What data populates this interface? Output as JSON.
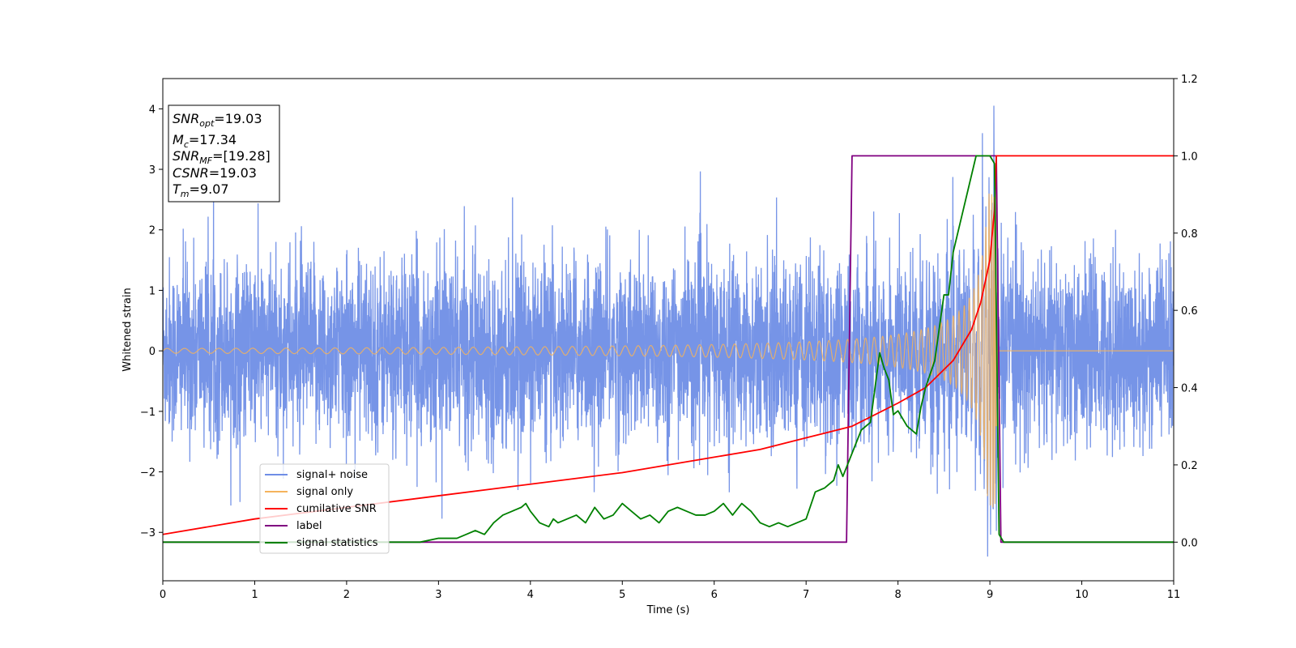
{
  "chart_data": {
    "type": "line",
    "xlabel": "Time (s)",
    "ylabel": "Whitened strain",
    "xlim": [
      0,
      11
    ],
    "ylim": [
      -3.8,
      4.5
    ],
    "y2lim": [
      -0.1,
      1.2
    ],
    "x_ticks": [
      "0",
      "1",
      "2",
      "3",
      "4",
      "5",
      "6",
      "7",
      "8",
      "9",
      "10",
      "11"
    ],
    "y_ticks": [
      "−3",
      "−2",
      "−1",
      "0",
      "1",
      "2",
      "3",
      "4"
    ],
    "y_tick_values": [
      -3,
      -2,
      -1,
      0,
      1,
      2,
      3,
      4
    ],
    "y2_ticks": [
      "0.0",
      "0.2",
      "0.4",
      "0.6",
      "0.8",
      "1.0",
      "1.2"
    ],
    "y2_tick_values": [
      0.0,
      0.2,
      0.4,
      0.6,
      0.8,
      1.0,
      1.2
    ],
    "grid": false,
    "legend_position": "lower-left",
    "annotation": {
      "snr_opt": {
        "base": "SNR",
        "sub": "opt",
        "value": "=19.03"
      },
      "mc": {
        "base": "M",
        "sub": "c",
        "value": "=17.34"
      },
      "snr_mf": {
        "base": "SNR",
        "sub": "MF",
        "value": "=[19.28]"
      },
      "csnr": {
        "base": "CSNR",
        "value": "=19.03"
      },
      "tm": {
        "base": "T",
        "sub": "m",
        "value": "=9.07"
      }
    },
    "series": [
      {
        "name": "signal+ noise",
        "axis": "left",
        "color": "#6f8ee6",
        "kind": "noise",
        "description_values": {
          "std": 0.75,
          "min": -3.4,
          "max": 4.15,
          "merger_time": 9.07
        }
      },
      {
        "name": "signal only",
        "axis": "left",
        "color": "#f5b35c",
        "kind": "chirp",
        "description_values": {
          "start_amplitude": 0.04,
          "merger_time": 9.07,
          "peak_amplitude": 2.6
        }
      },
      {
        "name": "cumilative SNR",
        "axis": "right",
        "color": "#ff0000",
        "x": [
          0,
          1,
          2,
          3,
          4,
          5,
          6,
          6.5,
          7,
          7.5,
          8,
          8.3,
          8.6,
          8.8,
          8.9,
          9.0,
          9.05,
          9.07,
          11
        ],
        "y": [
          0.02,
          0.06,
          0.09,
          0.12,
          0.15,
          0.18,
          0.22,
          0.24,
          0.27,
          0.3,
          0.36,
          0.4,
          0.47,
          0.55,
          0.62,
          0.73,
          0.86,
          1.0,
          1.0
        ]
      },
      {
        "name": "label",
        "axis": "right",
        "color": "#800080",
        "x": [
          0,
          7.44,
          7.5,
          9.07,
          9.12,
          11
        ],
        "y": [
          0.0,
          0.0,
          1.0,
          1.0,
          0.0,
          0.0
        ]
      },
      {
        "name": "signal statistics",
        "axis": "right",
        "color": "#008000",
        "x": [
          0,
          0.5,
          1,
          1.5,
          2,
          2.5,
          2.8,
          3.0,
          3.2,
          3.3,
          3.4,
          3.5,
          3.6,
          3.7,
          3.8,
          3.9,
          3.95,
          4.0,
          4.1,
          4.2,
          4.25,
          4.3,
          4.4,
          4.5,
          4.6,
          4.7,
          4.8,
          4.9,
          5.0,
          5.1,
          5.2,
          5.3,
          5.4,
          5.5,
          5.6,
          5.7,
          5.8,
          5.9,
          6.0,
          6.1,
          6.2,
          6.3,
          6.4,
          6.5,
          6.6,
          6.7,
          6.8,
          6.9,
          7.0,
          7.1,
          7.2,
          7.3,
          7.35,
          7.4,
          7.5,
          7.6,
          7.7,
          7.8,
          7.85,
          7.9,
          7.95,
          8.0,
          8.1,
          8.2,
          8.25,
          8.3,
          8.4,
          8.5,
          8.55,
          8.6,
          8.7,
          8.8,
          8.85,
          8.9,
          9.0,
          9.05,
          9.1,
          9.15,
          9.3,
          11
        ],
        "y": [
          0.0,
          0.0,
          0.0,
          0.0,
          0.0,
          0.0,
          0.0,
          0.01,
          0.01,
          0.02,
          0.03,
          0.02,
          0.05,
          0.07,
          0.08,
          0.09,
          0.1,
          0.08,
          0.05,
          0.04,
          0.06,
          0.05,
          0.06,
          0.07,
          0.05,
          0.09,
          0.06,
          0.07,
          0.1,
          0.08,
          0.06,
          0.07,
          0.05,
          0.08,
          0.09,
          0.08,
          0.07,
          0.07,
          0.08,
          0.1,
          0.07,
          0.1,
          0.08,
          0.05,
          0.04,
          0.05,
          0.04,
          0.05,
          0.06,
          0.13,
          0.14,
          0.16,
          0.2,
          0.17,
          0.23,
          0.29,
          0.31,
          0.49,
          0.45,
          0.42,
          0.33,
          0.34,
          0.3,
          0.28,
          0.35,
          0.4,
          0.47,
          0.64,
          0.64,
          0.75,
          0.85,
          0.95,
          1.0,
          1.0,
          1.0,
          0.98,
          0.02,
          0.0,
          0.0,
          0.0
        ]
      }
    ]
  }
}
